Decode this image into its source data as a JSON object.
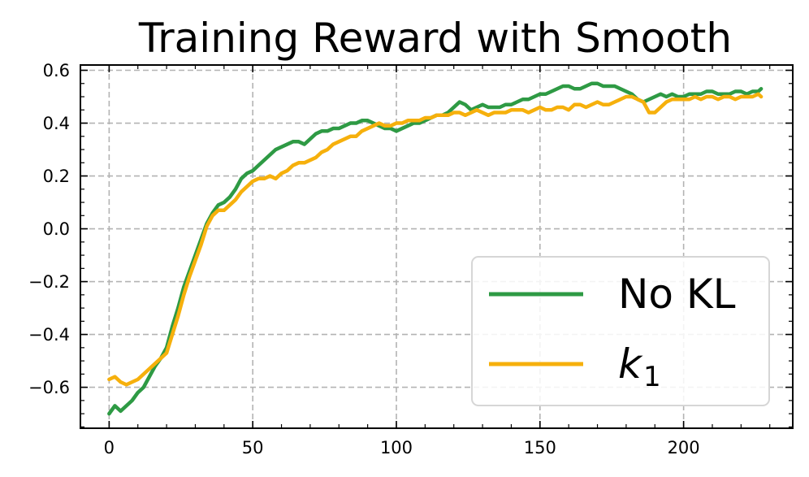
{
  "chart_data": {
    "type": "line",
    "title": "Training Reward with Smooth",
    "xlabel": "",
    "ylabel": "",
    "xlim": [
      -10,
      238
    ],
    "ylim": [
      -0.755,
      0.62
    ],
    "x_ticks": [
      0,
      50,
      100,
      150,
      200
    ],
    "x_tick_labels": [
      "0",
      "50",
      "100",
      "150",
      "200"
    ],
    "y_ticks": [
      -0.6,
      -0.4,
      -0.2,
      0.0,
      0.2,
      0.4,
      0.6
    ],
    "y_tick_labels": [
      "−0.6",
      "−0.4",
      "−0.2",
      "0.0",
      "0.2",
      "0.4",
      "0.6"
    ],
    "grid": true,
    "legend_position": "lower-right",
    "series": [
      {
        "name": "No KL",
        "color": "#2e9a44",
        "x": [
          0,
          2,
          4,
          6,
          8,
          10,
          12,
          14,
          16,
          18,
          20,
          22,
          24,
          26,
          28,
          30,
          32,
          34,
          36,
          38,
          40,
          42,
          44,
          46,
          48,
          50,
          52,
          54,
          56,
          58,
          60,
          62,
          64,
          66,
          68,
          70,
          72,
          74,
          76,
          78,
          80,
          82,
          84,
          86,
          88,
          90,
          92,
          94,
          96,
          98,
          100,
          102,
          104,
          106,
          108,
          110,
          112,
          114,
          116,
          118,
          120,
          122,
          124,
          126,
          128,
          130,
          132,
          134,
          136,
          138,
          140,
          142,
          144,
          146,
          148,
          150,
          152,
          154,
          156,
          158,
          160,
          162,
          164,
          166,
          168,
          170,
          172,
          174,
          176,
          178,
          180,
          182,
          184,
          186,
          188,
          190,
          192,
          194,
          196,
          198,
          200,
          202,
          204,
          206,
          208,
          210,
          212,
          214,
          216,
          218,
          220,
          222,
          224,
          226,
          227
        ],
        "y": [
          -0.7,
          -0.67,
          -0.69,
          -0.67,
          -0.65,
          -0.62,
          -0.6,
          -0.56,
          -0.52,
          -0.49,
          -0.45,
          -0.37,
          -0.3,
          -0.22,
          -0.16,
          -0.1,
          -0.04,
          0.02,
          0.06,
          0.09,
          0.1,
          0.12,
          0.15,
          0.19,
          0.21,
          0.22,
          0.24,
          0.26,
          0.28,
          0.3,
          0.31,
          0.32,
          0.33,
          0.33,
          0.32,
          0.34,
          0.36,
          0.37,
          0.37,
          0.38,
          0.38,
          0.39,
          0.4,
          0.4,
          0.41,
          0.41,
          0.4,
          0.39,
          0.38,
          0.38,
          0.37,
          0.38,
          0.39,
          0.4,
          0.4,
          0.41,
          0.42,
          0.43,
          0.43,
          0.44,
          0.46,
          0.48,
          0.47,
          0.45,
          0.46,
          0.47,
          0.46,
          0.46,
          0.46,
          0.47,
          0.47,
          0.48,
          0.49,
          0.49,
          0.5,
          0.51,
          0.51,
          0.52,
          0.53,
          0.54,
          0.54,
          0.53,
          0.53,
          0.54,
          0.55,
          0.55,
          0.54,
          0.54,
          0.54,
          0.53,
          0.52,
          0.51,
          0.49,
          0.48,
          0.49,
          0.5,
          0.51,
          0.5,
          0.51,
          0.5,
          0.5,
          0.51,
          0.51,
          0.51,
          0.52,
          0.52,
          0.51,
          0.51,
          0.51,
          0.52,
          0.52,
          0.51,
          0.52,
          0.52,
          0.53
        ]
      },
      {
        "name": "k",
        "name_subscript": "1",
        "color": "#f6b00c",
        "x": [
          0,
          2,
          4,
          6,
          8,
          10,
          12,
          14,
          16,
          18,
          20,
          22,
          24,
          26,
          28,
          30,
          32,
          34,
          36,
          38,
          40,
          42,
          44,
          46,
          48,
          50,
          52,
          54,
          56,
          58,
          60,
          62,
          64,
          66,
          68,
          70,
          72,
          74,
          76,
          78,
          80,
          82,
          84,
          86,
          88,
          90,
          92,
          94,
          96,
          98,
          100,
          102,
          104,
          106,
          108,
          110,
          112,
          114,
          116,
          118,
          120,
          122,
          124,
          126,
          128,
          130,
          132,
          134,
          136,
          138,
          140,
          142,
          144,
          146,
          148,
          150,
          152,
          154,
          156,
          158,
          160,
          162,
          164,
          166,
          168,
          170,
          172,
          174,
          176,
          178,
          180,
          182,
          184,
          186,
          188,
          190,
          192,
          194,
          196,
          198,
          200,
          202,
          204,
          206,
          208,
          210,
          212,
          214,
          216,
          218,
          220,
          222,
          224,
          226,
          227
        ],
        "y": [
          -0.57,
          -0.56,
          -0.58,
          -0.59,
          -0.58,
          -0.57,
          -0.55,
          -0.53,
          -0.51,
          -0.49,
          -0.47,
          -0.4,
          -0.33,
          -0.25,
          -0.18,
          -0.12,
          -0.06,
          0.01,
          0.05,
          0.07,
          0.07,
          0.09,
          0.11,
          0.14,
          0.16,
          0.18,
          0.19,
          0.19,
          0.2,
          0.19,
          0.21,
          0.22,
          0.24,
          0.25,
          0.25,
          0.26,
          0.27,
          0.29,
          0.3,
          0.32,
          0.33,
          0.34,
          0.35,
          0.35,
          0.37,
          0.38,
          0.39,
          0.4,
          0.39,
          0.39,
          0.4,
          0.4,
          0.41,
          0.41,
          0.41,
          0.42,
          0.42,
          0.43,
          0.43,
          0.43,
          0.44,
          0.44,
          0.43,
          0.44,
          0.45,
          0.44,
          0.43,
          0.44,
          0.44,
          0.44,
          0.45,
          0.45,
          0.45,
          0.44,
          0.45,
          0.46,
          0.45,
          0.45,
          0.46,
          0.46,
          0.45,
          0.47,
          0.47,
          0.46,
          0.47,
          0.48,
          0.47,
          0.47,
          0.48,
          0.49,
          0.5,
          0.5,
          0.49,
          0.48,
          0.44,
          0.44,
          0.46,
          0.48,
          0.49,
          0.49,
          0.49,
          0.49,
          0.5,
          0.49,
          0.5,
          0.5,
          0.49,
          0.5,
          0.5,
          0.49,
          0.5,
          0.5,
          0.5,
          0.51,
          0.5
        ]
      }
    ]
  }
}
